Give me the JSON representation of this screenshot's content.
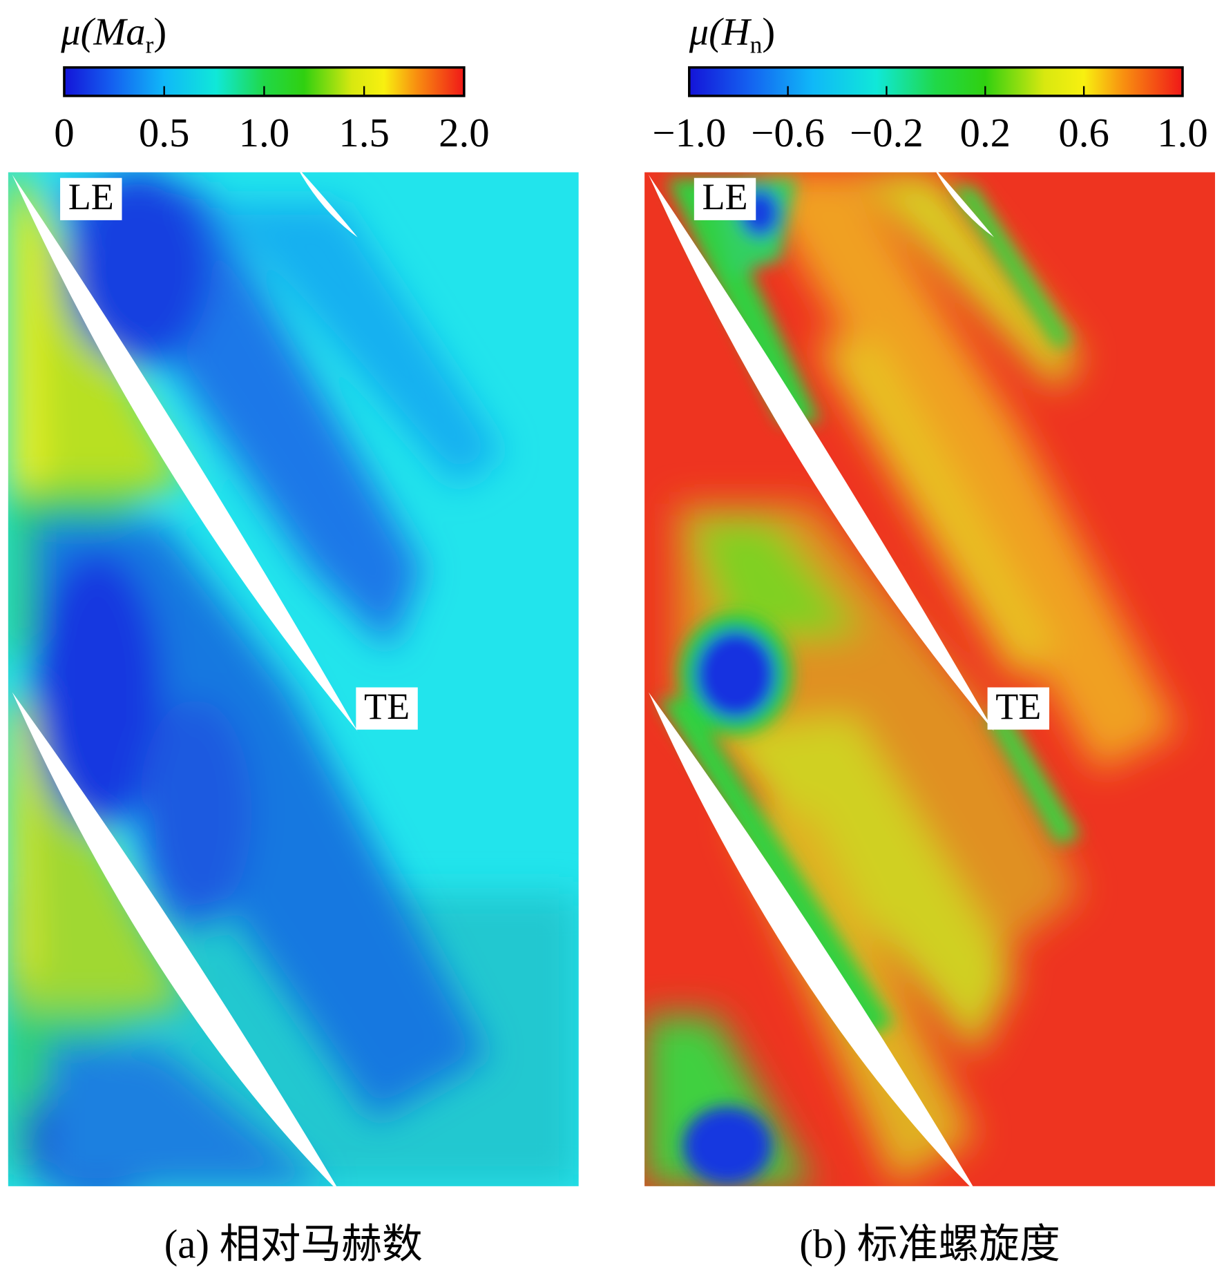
{
  "chart_data": [
    {
      "type": "contour",
      "colorbar_label": {
        "prefix": "μ(",
        "symbol": "Ma",
        "subscript": "r",
        "suffix": ")"
      },
      "clim": [
        0,
        2
      ],
      "ticks": [
        0,
        0.5,
        {
          "value": 1,
          "label": "1.0"
        },
        1.5,
        {
          "value": 2,
          "label": "2.0"
        }
      ],
      "annotations": [
        "LE",
        "TE"
      ],
      "caption": "(a) 相对马赫数"
    },
    {
      "type": "contour",
      "colorbar_label": {
        "prefix": "μ(",
        "symbol": "H",
        "subscript": "n",
        "suffix": ")"
      },
      "clim": [
        -1,
        1
      ],
      "ticks": [
        {
          "value": -1,
          "label": "−1.0"
        },
        {
          "value": -0.6,
          "label": "−0.6"
        },
        {
          "value": -0.2,
          "label": "−0.2"
        },
        0.2,
        0.6,
        {
          "value": 1,
          "label": "1.0"
        }
      ],
      "annotations": [
        "LE",
        "TE"
      ],
      "caption": "(b) 标准螺旋度"
    }
  ]
}
